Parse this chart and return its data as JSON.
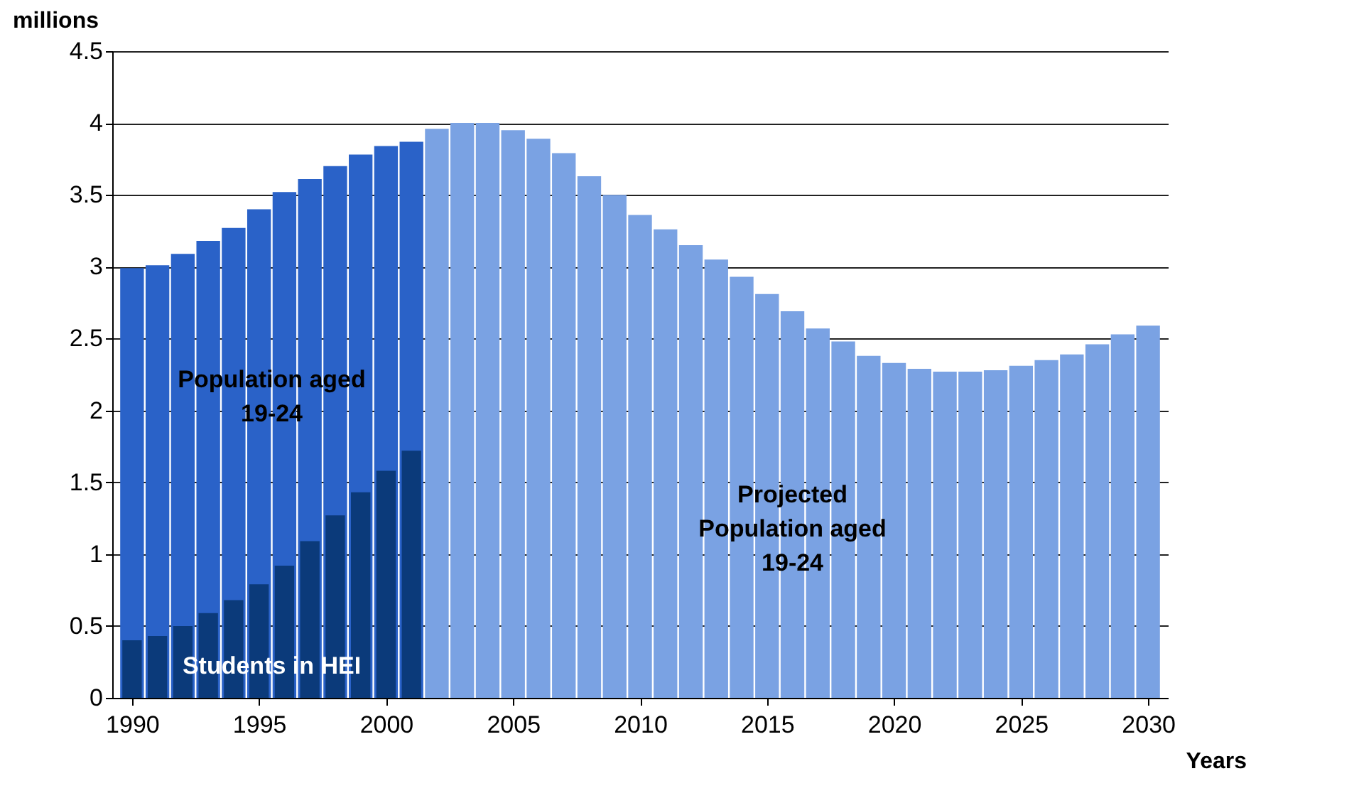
{
  "chart_data": {
    "type": "bar",
    "xlabel": "Years",
    "ylabel": "millions",
    "xlim": [
      1989.5,
      2030.5
    ],
    "xticks": [
      1990,
      1995,
      2000,
      2005,
      2010,
      2015,
      2020,
      2025,
      2030
    ],
    "ylim": [
      0,
      4.5
    ],
    "yticks": [
      0,
      0.5,
      1,
      1.5,
      2,
      2.5,
      3,
      3.5,
      4,
      4.5
    ],
    "grid": "y",
    "series": [
      {
        "name": "Population aged 19-24",
        "color": "#2a62c8",
        "x": [
          1990,
          1991,
          1992,
          1993,
          1994,
          1995,
          1996,
          1997,
          1998,
          1999,
          2000,
          2001
        ],
        "values": [
          2.99,
          3.01,
          3.09,
          3.18,
          3.27,
          3.4,
          3.52,
          3.61,
          3.7,
          3.78,
          3.84,
          3.87
        ]
      },
      {
        "name": "Projected Population aged 19-24",
        "color": "#7aa2e3",
        "x": [
          2002,
          2003,
          2004,
          2005,
          2006,
          2007,
          2008,
          2009,
          2010,
          2011,
          2012,
          2013,
          2014,
          2015,
          2016,
          2017,
          2018,
          2019,
          2020,
          2021,
          2022,
          2023,
          2024,
          2025,
          2026,
          2027,
          2028,
          2029,
          2030
        ],
        "values": [
          3.96,
          4.0,
          4.0,
          3.95,
          3.89,
          3.79,
          3.63,
          3.5,
          3.36,
          3.26,
          3.15,
          3.05,
          2.93,
          2.81,
          2.69,
          2.57,
          2.48,
          2.38,
          2.33,
          2.29,
          2.27,
          2.27,
          2.28,
          2.31,
          2.35,
          2.39,
          2.46,
          2.53,
          2.59
        ]
      },
      {
        "name": "Students in HEI",
        "color": "#0b3a7a",
        "x": [
          1990,
          1991,
          1992,
          1993,
          1994,
          1995,
          1996,
          1997,
          1998,
          1999,
          2000,
          2001
        ],
        "values": [
          0.4,
          0.43,
          0.5,
          0.59,
          0.68,
          0.79,
          0.92,
          1.09,
          1.27,
          1.43,
          1.58,
          1.72
        ]
      }
    ]
  }
}
